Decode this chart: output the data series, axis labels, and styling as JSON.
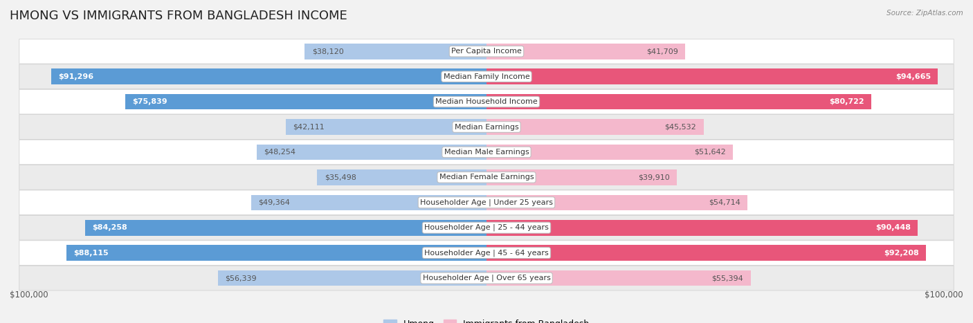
{
  "title": "HMONG VS IMMIGRANTS FROM BANGLADESH INCOME",
  "source": "Source: ZipAtlas.com",
  "categories": [
    "Per Capita Income",
    "Median Family Income",
    "Median Household Income",
    "Median Earnings",
    "Median Male Earnings",
    "Median Female Earnings",
    "Householder Age | Under 25 years",
    "Householder Age | 25 - 44 years",
    "Householder Age | 45 - 64 years",
    "Householder Age | Over 65 years"
  ],
  "hmong_values": [
    38120,
    91296,
    75839,
    42111,
    48254,
    35498,
    49364,
    84258,
    88115,
    56339
  ],
  "bangladesh_values": [
    41709,
    94665,
    80722,
    45532,
    51642,
    39910,
    54714,
    90448,
    92208,
    55394
  ],
  "hmong_labels": [
    "$38,120",
    "$91,296",
    "$75,839",
    "$42,111",
    "$48,254",
    "$35,498",
    "$49,364",
    "$84,258",
    "$88,115",
    "$56,339"
  ],
  "bangladesh_labels": [
    "$41,709",
    "$94,665",
    "$80,722",
    "$45,532",
    "$51,642",
    "$39,910",
    "$54,714",
    "$90,448",
    "$92,208",
    "$55,394"
  ],
  "max_value": 100000,
  "hmong_color_light": "#adc8e8",
  "hmong_color_dark": "#5b9bd5",
  "bangladesh_color_light": "#f4b8cc",
  "bangladesh_color_dark": "#e8567a",
  "background_color": "#f2f2f2",
  "row_color_odd": "#ffffff",
  "row_color_even": "#ebebeb",
  "label_color_inside": "#ffffff",
  "label_color_outside": "#555555",
  "legend_hmong": "Hmong",
  "legend_bangladesh": "Immigrants from Bangladesh",
  "xlabel_left": "$100,000",
  "xlabel_right": "$100,000",
  "title_fontsize": 13,
  "label_fontsize": 8,
  "category_fontsize": 8,
  "inside_threshold": 60000
}
